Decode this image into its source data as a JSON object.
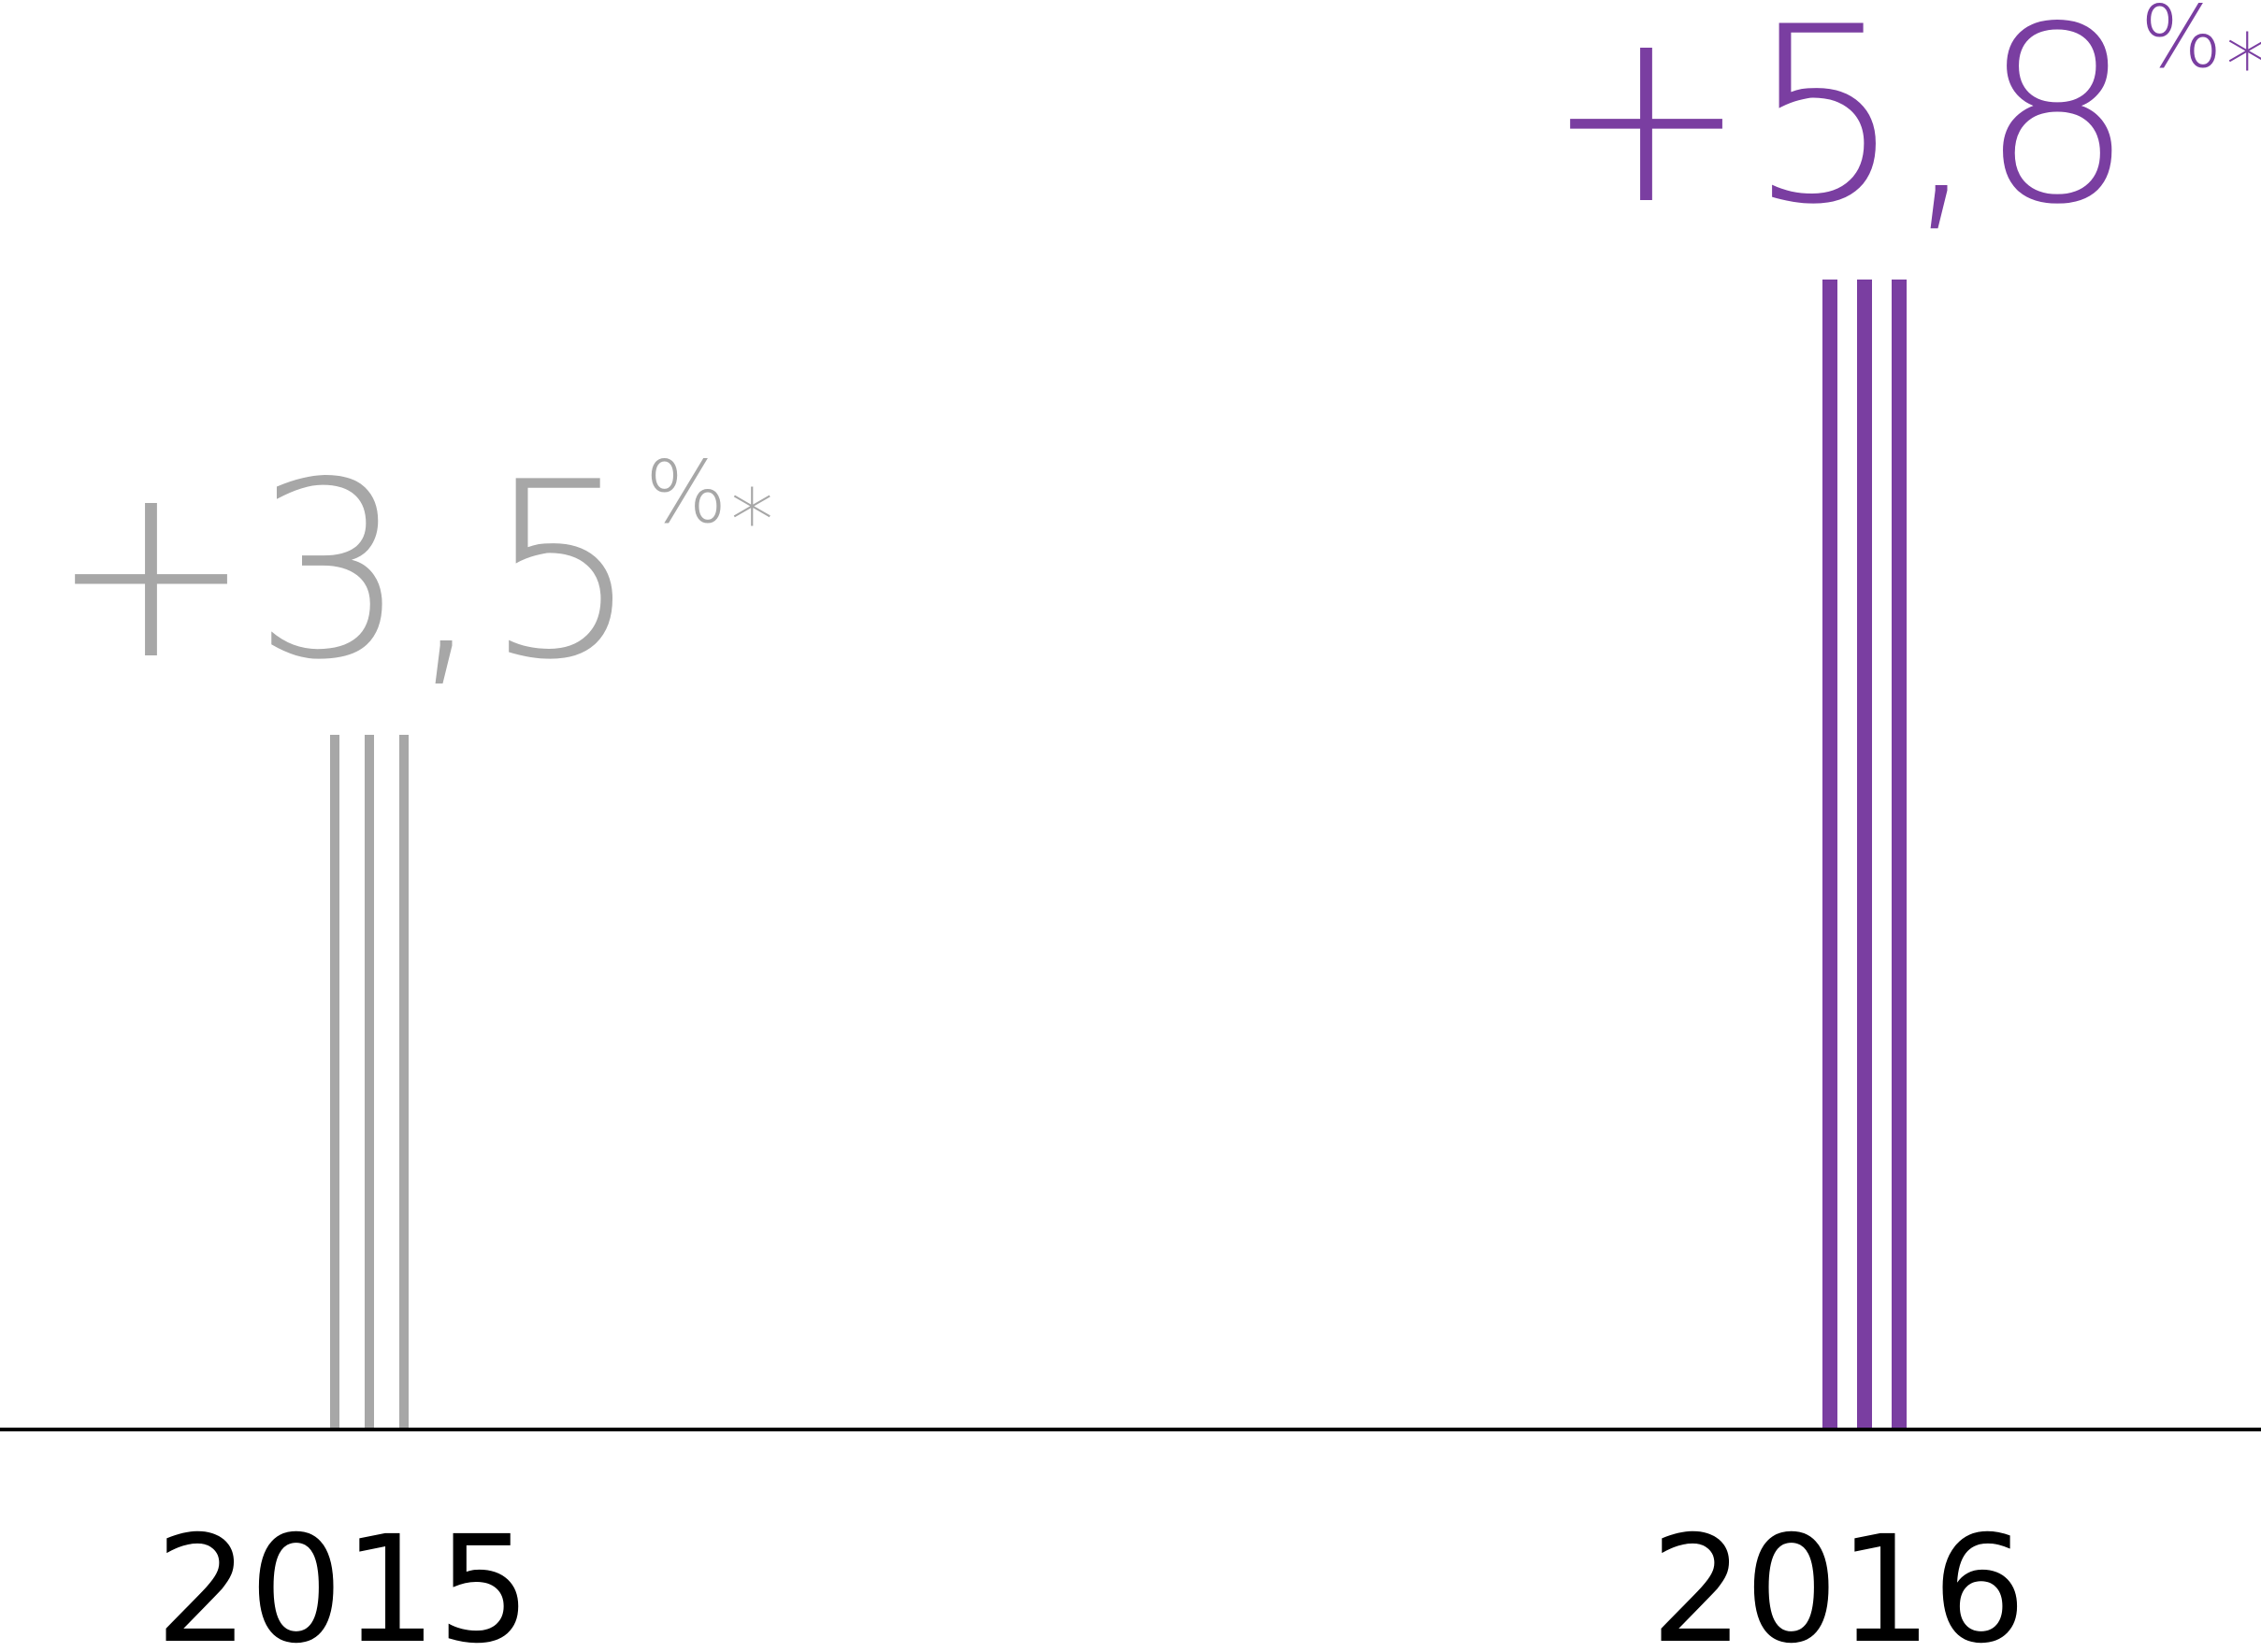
{
  "chart_data": {
    "type": "bar",
    "categories": [
      "2015",
      "2016"
    ],
    "values": [
      3.5,
      5.8
    ],
    "unit": "%",
    "data_labels": [
      {
        "sign": "+",
        "number": "3,5",
        "percent": "%",
        "asterisk": "*"
      },
      {
        "sign": "+",
        "number": "5,8",
        "percent": "%",
        "asterisk": "*"
      }
    ],
    "colors": [
      "#a7a7a7",
      "#7a3ea1"
    ],
    "axis_color": "#000000",
    "ylim": [
      0,
      5.8
    ],
    "grid": false,
    "legend": "none",
    "title": "",
    "xlabel": "",
    "ylabel": ""
  }
}
